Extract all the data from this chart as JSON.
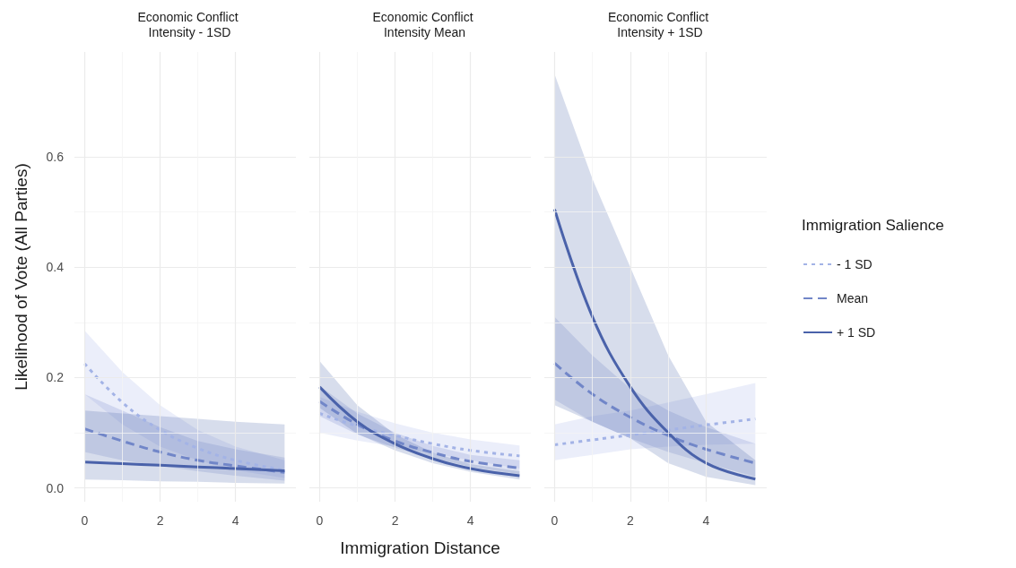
{
  "chart_data": [
    {
      "type": "line",
      "title": "Economic Conflict Intensity - 1SD",
      "ylabel": "Likelihood of Vote (All Parties)",
      "xlim": [
        -0.27,
        5.6
      ],
      "xticks": [
        0,
        2,
        4
      ],
      "ylim": [
        -0.025,
        0.79
      ],
      "yticks": [
        {
          "value": 0,
          "label": "0.0"
        },
        0.2,
        0.4,
        0.6
      ],
      "grid": true,
      "tick_labels": true,
      "x": [
        0,
        1,
        2,
        3,
        4,
        5.3
      ],
      "series": [
        {
          "color": "#a3b3e6",
          "line_style": "dotted",
          "values": [
            0.225,
            0.155,
            0.105,
            0.072,
            0.05,
            0.032
          ],
          "lower": [
            0.17,
            0.115,
            0.075,
            0.05,
            0.032,
            0.018
          ],
          "upper": [
            0.285,
            0.21,
            0.15,
            0.105,
            0.075,
            0.05
          ]
        },
        {
          "color": "#7186c8",
          "line_style": "dashed",
          "values": [
            0.107,
            0.085,
            0.065,
            0.05,
            0.04,
            0.028
          ],
          "lower": [
            0.065,
            0.05,
            0.04,
            0.03,
            0.022,
            0.013
          ],
          "upper": [
            0.17,
            0.14,
            0.11,
            0.085,
            0.07,
            0.055
          ]
        },
        {
          "color": "#4a62aa",
          "line_style": "solid",
          "values": [
            0.047,
            0.044,
            0.041,
            0.038,
            0.035,
            0.031
          ],
          "lower": [
            0.015,
            0.014,
            0.012,
            0.011,
            0.009,
            0.008
          ],
          "upper": [
            0.14,
            0.135,
            0.13,
            0.125,
            0.12,
            0.115
          ]
        }
      ]
    },
    {
      "type": "line",
      "title": "Economic Conflict Intensity Mean",
      "xlabel": "Immigration Distance",
      "xlim": [
        -0.27,
        5.6
      ],
      "xticks": [
        0,
        2,
        4
      ],
      "ylim": [
        -0.025,
        0.79
      ],
      "yticks": [
        0,
        0.2,
        0.4,
        0.6
      ],
      "grid": true,
      "tick_labels": "x",
      "x": [
        0,
        1,
        2,
        3,
        4,
        5.3
      ],
      "series": [
        {
          "color": "#a3b3e6",
          "line_style": "dotted",
          "values": [
            0.135,
            0.112,
            0.095,
            0.08,
            0.068,
            0.058
          ],
          "lower": [
            0.1,
            0.086,
            0.075,
            0.063,
            0.05,
            0.035
          ],
          "upper": [
            0.165,
            0.138,
            0.117,
            0.1,
            0.088,
            0.077
          ]
        },
        {
          "color": "#7186c8",
          "line_style": "dashed",
          "values": [
            0.157,
            0.115,
            0.085,
            0.064,
            0.048,
            0.036
          ],
          "lower": [
            0.13,
            0.097,
            0.073,
            0.054,
            0.038,
            0.025
          ],
          "upper": [
            0.185,
            0.135,
            0.1,
            0.076,
            0.06,
            0.05
          ]
        },
        {
          "color": "#4a62aa",
          "line_style": "solid",
          "values": [
            0.183,
            0.12,
            0.08,
            0.053,
            0.035,
            0.022
          ],
          "lower": [
            0.145,
            0.098,
            0.068,
            0.045,
            0.029,
            0.015
          ],
          "upper": [
            0.23,
            0.15,
            0.097,
            0.064,
            0.043,
            0.03
          ]
        }
      ]
    },
    {
      "type": "line",
      "title": "Economic Conflict Intensity + 1SD",
      "legend_title": "Immigration Salience",
      "legend": "right",
      "xlim": [
        -0.27,
        5.6
      ],
      "xticks": [
        0,
        2,
        4
      ],
      "ylim": [
        -0.025,
        0.79
      ],
      "yticks": [
        0,
        0.2,
        0.4,
        0.6
      ],
      "grid": true,
      "tick_labels": "x",
      "x": [
        0,
        1,
        2,
        3,
        4,
        5.3
      ],
      "series": [
        {
          "name": "- 1 SD",
          "color": "#a3b3e6",
          "line_style": "dotted",
          "values": [
            0.078,
            0.087,
            0.096,
            0.105,
            0.114,
            0.125
          ],
          "lower": [
            0.05,
            0.06,
            0.07,
            0.075,
            0.078,
            0.08
          ],
          "upper": [
            0.115,
            0.13,
            0.14,
            0.155,
            0.17,
            0.19
          ]
        },
        {
          "name": "Mean",
          "color": "#7186c8",
          "line_style": "dashed",
          "values": [
            0.226,
            0.17,
            0.128,
            0.095,
            0.07,
            0.045
          ],
          "lower": [
            0.16,
            0.12,
            0.09,
            0.065,
            0.045,
            0.02
          ],
          "upper": [
            0.31,
            0.24,
            0.18,
            0.14,
            0.11,
            0.08
          ]
        },
        {
          "name": "+ 1 SD",
          "color": "#4a62aa",
          "line_style": "solid",
          "values": [
            0.505,
            0.31,
            0.183,
            0.1,
            0.045,
            0.016
          ],
          "lower": [
            0.15,
            0.12,
            0.09,
            0.045,
            0.02,
            0.005
          ],
          "upper": [
            0.75,
            0.56,
            0.4,
            0.24,
            0.12,
            0.05
          ]
        }
      ]
    }
  ]
}
